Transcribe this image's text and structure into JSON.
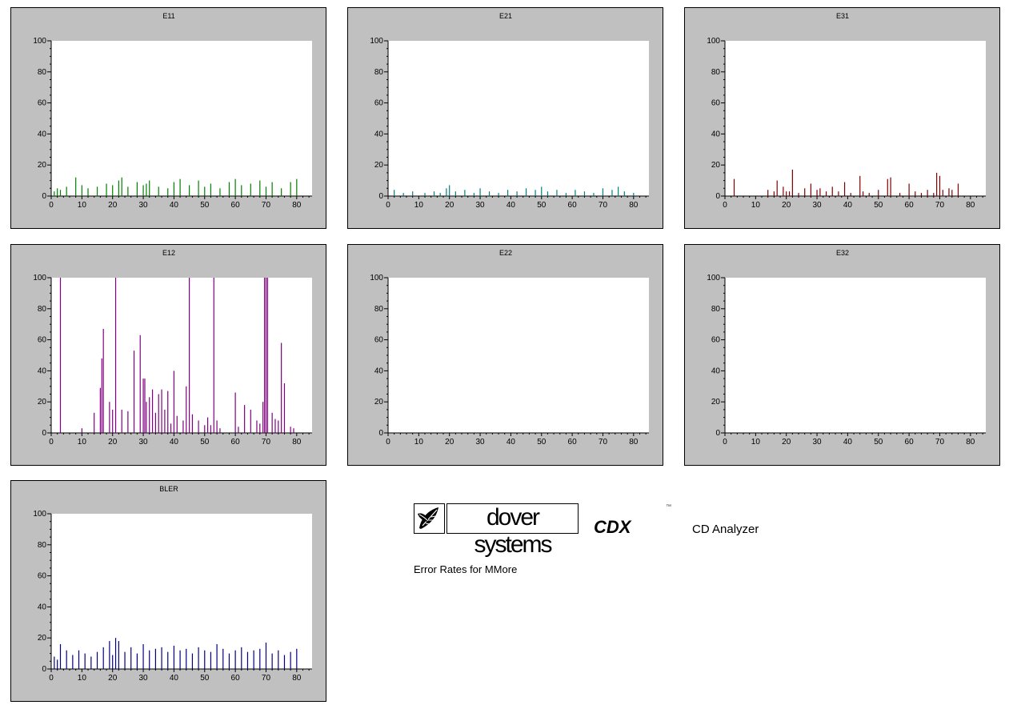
{
  "brand": {
    "logo_text": "dover systems",
    "product": "CDX",
    "trademark": "™",
    "product_name": "CD Analyzer",
    "subtitle": "Error Rates for MMore"
  },
  "colors": {
    "E11": "#008000",
    "E21": "#008080",
    "E31": "#800000",
    "E12": "#800080",
    "E22": "#008000",
    "E32": "#008000",
    "BLER": "#000080"
  },
  "chart_data": [
    {
      "type": "bar",
      "title": "E11",
      "xlim": [
        0,
        85
      ],
      "ylim": [
        0,
        100
      ],
      "xticks": [
        0,
        10,
        20,
        30,
        40,
        50,
        60,
        70,
        80
      ],
      "yticks": [
        0,
        20,
        40,
        60,
        80,
        100
      ],
      "series": [
        {
          "x": [
            1,
            2,
            3,
            5,
            8,
            10,
            12,
            15,
            18,
            20,
            22,
            23,
            25,
            28,
            30,
            31,
            32,
            35,
            38,
            40,
            42,
            45,
            48,
            50,
            52,
            55,
            58,
            60,
            62,
            65,
            68,
            70,
            72,
            75,
            78,
            80
          ],
          "values": [
            3,
            5,
            4,
            6,
            12,
            7,
            5,
            6,
            8,
            7,
            10,
            12,
            6,
            9,
            7,
            8,
            10,
            6,
            5,
            9,
            11,
            7,
            10,
            6,
            8,
            5,
            9,
            11,
            7,
            8,
            10,
            6,
            9,
            5,
            9,
            11
          ]
        }
      ]
    },
    {
      "type": "bar",
      "title": "E21",
      "xlim": [
        0,
        85
      ],
      "ylim": [
        0,
        100
      ],
      "xticks": [
        0,
        10,
        20,
        30,
        40,
        50,
        60,
        70,
        80
      ],
      "yticks": [
        0,
        20,
        40,
        60,
        80,
        100
      ],
      "series": [
        {
          "x": [
            2,
            5,
            8,
            12,
            15,
            17,
            19,
            20,
            22,
            25,
            28,
            30,
            33,
            36,
            39,
            42,
            45,
            48,
            50,
            52,
            55,
            58,
            61,
            64,
            67,
            70,
            73,
            75,
            77,
            80
          ],
          "values": [
            4,
            2,
            3,
            2,
            3,
            2,
            5,
            7,
            3,
            4,
            2,
            5,
            3,
            2,
            4,
            3,
            5,
            4,
            6,
            3,
            4,
            2,
            4,
            3,
            2,
            5,
            4,
            6,
            3,
            2
          ]
        }
      ]
    },
    {
      "type": "bar",
      "title": "E31",
      "xlim": [
        0,
        85
      ],
      "ylim": [
        0,
        100
      ],
      "xticks": [
        0,
        10,
        20,
        30,
        40,
        50,
        60,
        70,
        80
      ],
      "yticks": [
        0,
        20,
        40,
        60,
        80,
        100
      ],
      "series": [
        {
          "x": [
            3,
            14,
            16,
            17,
            19,
            20,
            21,
            22,
            24,
            26,
            28,
            30,
            31,
            33,
            35,
            37,
            39,
            41,
            44,
            45,
            47,
            50,
            53,
            54,
            57,
            60,
            62,
            64,
            66,
            68,
            69,
            70,
            71,
            73,
            74,
            76
          ],
          "values": [
            11,
            4,
            3,
            10,
            6,
            3,
            3,
            17,
            2,
            5,
            8,
            4,
            5,
            3,
            6,
            3,
            9,
            2,
            13,
            3,
            2,
            4,
            11,
            12,
            2,
            8,
            3,
            2,
            4,
            2,
            15,
            13,
            4,
            5,
            4,
            8
          ]
        }
      ]
    },
    {
      "type": "bar",
      "title": "E12",
      "xlim": [
        0,
        85
      ],
      "ylim": [
        0,
        100
      ],
      "xticks": [
        0,
        10,
        20,
        30,
        40,
        50,
        60,
        70,
        80
      ],
      "yticks": [
        0,
        20,
        40,
        60,
        80,
        100
      ],
      "series": [
        {
          "x": [
            3,
            10,
            14,
            16,
            16.5,
            17,
            19,
            20,
            21,
            23,
            25,
            27,
            29,
            30,
            30.5,
            31,
            32,
            33,
            34,
            35,
            36,
            37,
            38,
            39,
            40,
            41,
            43,
            44,
            45,
            46,
            48,
            50,
            51,
            52,
            53,
            54,
            55,
            60,
            61,
            63,
            65,
            67,
            68,
            69,
            69.5,
            70,
            70.5,
            72,
            73,
            74,
            75,
            76,
            78,
            79
          ],
          "values": [
            100,
            3,
            13,
            29,
            48,
            67,
            20,
            15,
            100,
            15,
            14,
            53,
            63,
            35,
            35,
            20,
            23,
            28,
            13,
            25,
            28,
            15,
            27,
            6,
            40,
            11,
            8,
            30,
            100,
            12,
            8,
            5,
            10,
            5,
            100,
            8,
            3,
            26,
            4,
            18,
            15,
            8,
            6,
            20,
            100,
            100,
            100,
            13,
            9,
            8,
            58,
            32,
            4,
            3
          ]
        }
      ]
    },
    {
      "type": "bar",
      "title": "E22",
      "xlim": [
        0,
        85
      ],
      "ylim": [
        0,
        100
      ],
      "xticks": [
        0,
        10,
        20,
        30,
        40,
        50,
        60,
        70,
        80
      ],
      "yticks": [
        0,
        20,
        40,
        60,
        80,
        100
      ],
      "series": [
        {
          "x": [],
          "values": []
        }
      ]
    },
    {
      "type": "bar",
      "title": "E32",
      "xlim": [
        0,
        85
      ],
      "ylim": [
        0,
        100
      ],
      "xticks": [
        0,
        10,
        20,
        30,
        40,
        50,
        60,
        70,
        80
      ],
      "yticks": [
        0,
        20,
        40,
        60,
        80,
        100
      ],
      "series": [
        {
          "x": [],
          "values": []
        }
      ]
    },
    {
      "type": "bar",
      "title": "BLER",
      "xlim": [
        0,
        85
      ],
      "ylim": [
        0,
        100
      ],
      "xticks": [
        0,
        10,
        20,
        30,
        40,
        50,
        60,
        70,
        80
      ],
      "yticks": [
        0,
        20,
        40,
        60,
        80,
        100
      ],
      "series": [
        {
          "x": [
            1,
            2,
            3,
            5,
            7,
            9,
            11,
            13,
            15,
            17,
            19,
            20,
            21,
            22,
            24,
            26,
            28,
            30,
            32,
            34,
            36,
            38,
            40,
            42,
            44,
            46,
            48,
            50,
            52,
            54,
            56,
            58,
            60,
            62,
            64,
            66,
            68,
            70,
            72,
            74,
            76,
            78,
            80
          ],
          "values": [
            8,
            6,
            16,
            12,
            9,
            12,
            10,
            8,
            11,
            14,
            18,
            9,
            20,
            18,
            11,
            14,
            10,
            16,
            12,
            13,
            14,
            11,
            15,
            12,
            13,
            10,
            14,
            12,
            11,
            16,
            13,
            10,
            12,
            14,
            11,
            12,
            13,
            17,
            10,
            12,
            9,
            11,
            13
          ]
        }
      ]
    }
  ]
}
